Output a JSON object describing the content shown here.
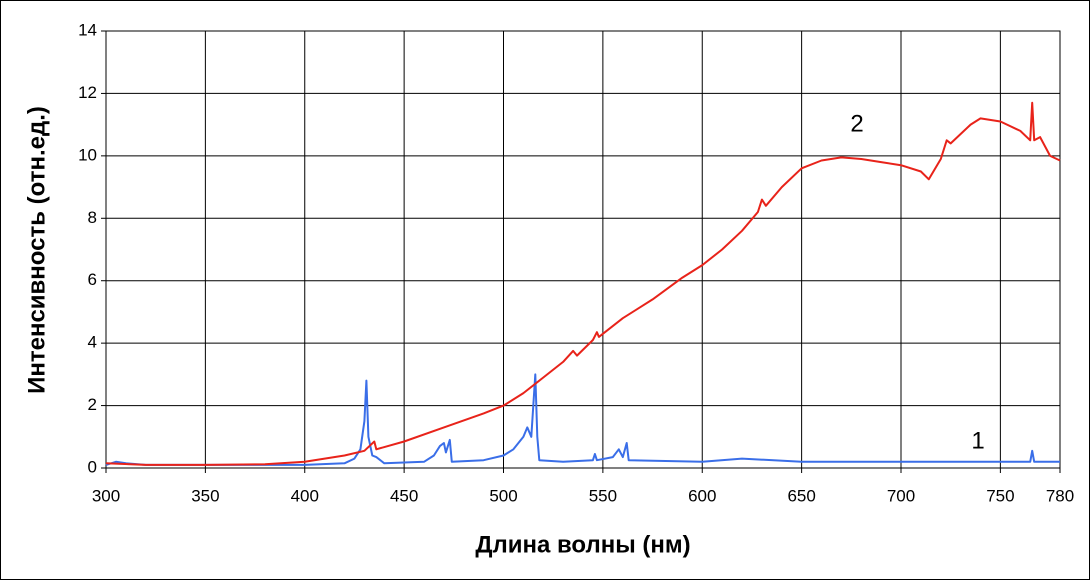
{
  "chart_data": {
    "type": "line",
    "x_label": "Длина волны (нм)",
    "y_label": "Интенсивность (отн.ед.)",
    "xlim": [
      300,
      780
    ],
    "xticks": [
      300,
      350,
      400,
      450,
      500,
      550,
      600,
      650,
      700,
      750,
      780
    ],
    "ylim": [
      0,
      14
    ],
    "yticks": [
      0,
      2,
      4,
      6,
      8,
      10,
      12,
      14
    ],
    "grid": true,
    "series": [
      {
        "name": "1",
        "color": "#3a6ee8",
        "x": [
          300,
          305,
          310,
          320,
          350,
          400,
          420,
          425,
          428,
          430,
          431,
          432,
          434,
          436,
          440,
          460,
          465,
          468,
          470,
          471,
          473,
          474,
          490,
          500,
          505,
          510,
          512,
          514,
          515,
          516,
          517,
          518,
          530,
          545,
          546,
          547,
          555,
          558,
          560,
          562,
          563,
          600,
          620,
          650,
          700,
          750,
          765,
          766,
          767,
          780
        ],
        "values": [
          0.1,
          0.2,
          0.15,
          0.1,
          0.1,
          0.1,
          0.15,
          0.3,
          0.6,
          1.5,
          2.8,
          1.0,
          0.4,
          0.35,
          0.15,
          0.2,
          0.4,
          0.7,
          0.8,
          0.5,
          0.9,
          0.2,
          0.25,
          0.4,
          0.6,
          1.0,
          1.3,
          1.0,
          2.0,
          3.0,
          1.0,
          0.25,
          0.2,
          0.25,
          0.45,
          0.25,
          0.35,
          0.6,
          0.35,
          0.8,
          0.25,
          0.2,
          0.3,
          0.2,
          0.2,
          0.2,
          0.2,
          0.55,
          0.2,
          0.2
        ]
      },
      {
        "name": "2",
        "color": "#e8231a",
        "x": [
          300,
          320,
          350,
          380,
          400,
          420,
          430,
          435,
          436,
          450,
          470,
          490,
          500,
          510,
          520,
          530,
          535,
          537,
          545,
          547,
          548,
          560,
          575,
          590,
          600,
          610,
          620,
          628,
          630,
          632,
          640,
          650,
          660,
          670,
          680,
          690,
          700,
          710,
          714,
          720,
          723,
          725,
          735,
          740,
          750,
          760,
          765,
          766,
          767,
          770,
          775,
          780
        ],
        "values": [
          0.15,
          0.1,
          0.1,
          0.12,
          0.2,
          0.4,
          0.55,
          0.85,
          0.6,
          0.85,
          1.3,
          1.75,
          2.0,
          2.4,
          2.9,
          3.4,
          3.75,
          3.6,
          4.1,
          4.35,
          4.2,
          4.8,
          5.4,
          6.1,
          6.5,
          7.0,
          7.6,
          8.2,
          8.6,
          8.4,
          9.0,
          9.6,
          9.85,
          9.95,
          9.9,
          9.8,
          9.7,
          9.5,
          9.25,
          9.9,
          10.5,
          10.4,
          11.0,
          11.2,
          11.1,
          10.8,
          10.5,
          11.7,
          10.5,
          10.6,
          10.0,
          9.85
        ]
      }
    ]
  }
}
